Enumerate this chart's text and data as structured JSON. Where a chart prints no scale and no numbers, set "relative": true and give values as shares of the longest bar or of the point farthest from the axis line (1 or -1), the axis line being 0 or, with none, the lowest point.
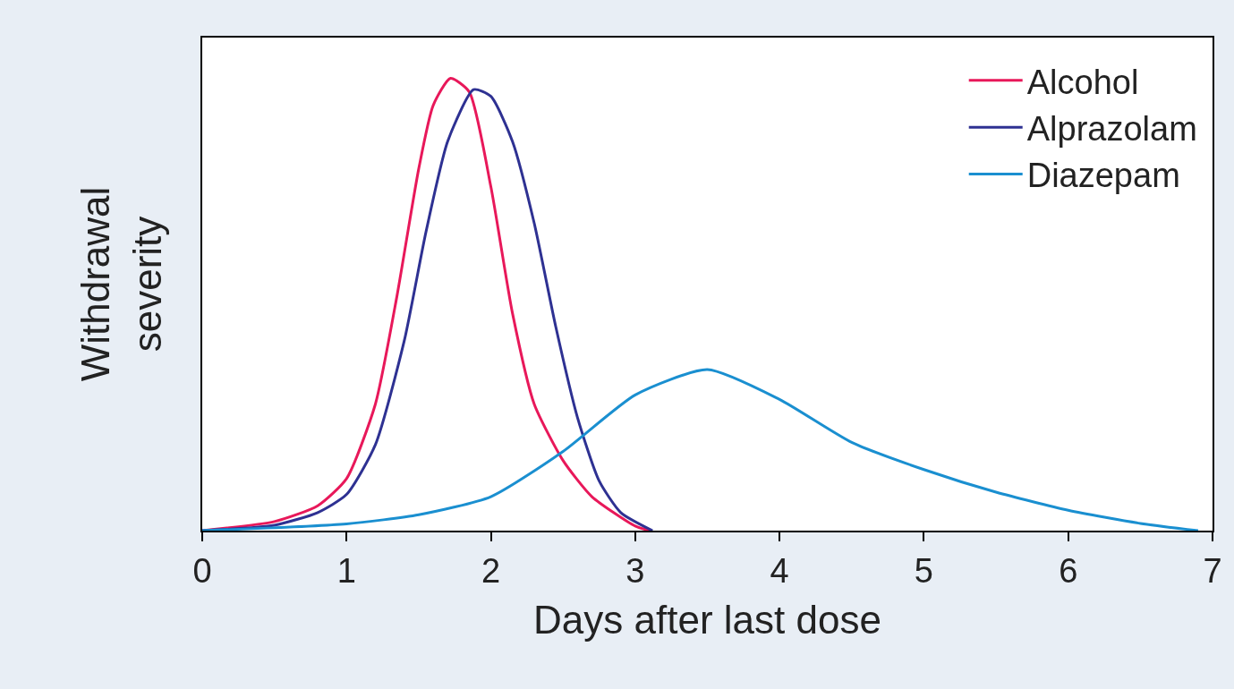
{
  "chart_data": {
    "type": "line",
    "relative": true,
    "xlabel": "Days after last dose",
    "ylabel": "Withdrawal\nseverity",
    "xlim": [
      0,
      7
    ],
    "xticks": [
      0,
      1,
      2,
      3,
      4,
      5,
      6,
      7
    ],
    "tick_labels": "x",
    "legend": "top right",
    "marker": "none",
    "line_style": "solid",
    "series": [
      {
        "name": "Alcohol",
        "color": "#e8185a",
        "x": [
          0,
          0.5,
          0.8,
          1.0,
          1.2,
          1.35,
          1.5,
          1.6,
          1.72,
          1.85,
          2.0,
          2.15,
          2.3,
          2.5,
          2.7,
          3.0,
          3.1
        ],
        "values": [
          0,
          0.02,
          0.055,
          0.115,
          0.28,
          0.52,
          0.8,
          0.94,
          1.0,
          0.97,
          0.76,
          0.48,
          0.28,
          0.155,
          0.075,
          0.01,
          0
        ]
      },
      {
        "name": "Alprazolam",
        "color": "#2e3192",
        "x": [
          0,
          0.5,
          0.8,
          1.0,
          1.2,
          1.4,
          1.55,
          1.7,
          1.88,
          2.0,
          2.15,
          2.3,
          2.45,
          2.6,
          2.75,
          2.9,
          3.12
        ],
        "values": [
          0,
          0.012,
          0.04,
          0.08,
          0.19,
          0.42,
          0.66,
          0.86,
          0.975,
          0.96,
          0.86,
          0.68,
          0.45,
          0.25,
          0.11,
          0.04,
          0
        ]
      },
      {
        "name": "Diazepam",
        "color": "#1a8fd0",
        "x": [
          0,
          1,
          1.5,
          2,
          2.5,
          3,
          3.5,
          4,
          4.5,
          5,
          5.5,
          6,
          6.5,
          6.9
        ],
        "values": [
          0,
          0.015,
          0.035,
          0.075,
          0.175,
          0.3,
          0.356,
          0.29,
          0.195,
          0.135,
          0.085,
          0.045,
          0.016,
          0
        ]
      }
    ]
  }
}
